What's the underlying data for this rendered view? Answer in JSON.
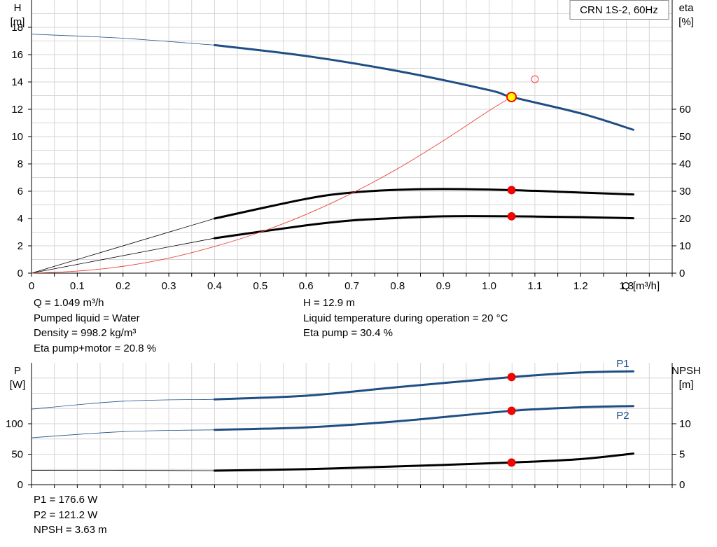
{
  "chart_data": [
    {
      "type": "line",
      "title": "CRN 1S-2, 60Hz",
      "xlabel": "Q [m³/h]",
      "xlim": [
        0,
        1.4
      ],
      "x_ticks": [
        "0",
        "0.1",
        "0.2",
        "0.3",
        "0.4",
        "0.5",
        "0.6",
        "0.7",
        "0.8",
        "0.9",
        "1.0",
        "1.1",
        "1.2",
        "1.3"
      ],
      "ylabel_left": "H",
      "ylabel_left_unit": "[m]",
      "ylim_left": [
        0,
        20
      ],
      "y_ticks_left": [
        "0",
        "2",
        "4",
        "6",
        "8",
        "10",
        "12",
        "14",
        "16",
        "18"
      ],
      "ylabel_right": "eta",
      "ylabel_right_unit": "[%]",
      "ylim_right": [
        0,
        100
      ],
      "y_ticks_right": [
        "0",
        "10",
        "20",
        "30",
        "40",
        "50",
        "60"
      ],
      "grid": true,
      "series": [
        {
          "axis": "left",
          "color": "#1f4e85",
          "x": [
            0,
            0.2,
            0.4,
            0.6,
            0.8,
            1.0,
            1.049,
            1.2,
            1.315
          ],
          "y": [
            17.5,
            17.2,
            16.7,
            15.9,
            14.8,
            13.4,
            12.9,
            11.7,
            10.5
          ]
        },
        {
          "axis": "right",
          "color": "#000000",
          "x": [
            0,
            0.4,
            0.6,
            0.7,
            0.8,
            0.9,
            1.049,
            1.2,
            1.315
          ],
          "y": [
            0,
            20,
            27.2,
            29.5,
            30.5,
            30.8,
            30.4,
            29.5,
            28.8
          ]
        },
        {
          "axis": "right",
          "color": "#000000",
          "x": [
            0,
            0.4,
            0.6,
            0.7,
            0.8,
            0.9,
            1.049,
            1.2,
            1.315
          ],
          "y": [
            0,
            12.8,
            17.5,
            19.3,
            20.2,
            20.8,
            20.8,
            20.5,
            20.1
          ]
        },
        {
          "axis": "left",
          "color": "#e8453c",
          "x": [
            0,
            0.1,
            0.2,
            0.3,
            0.4,
            0.5,
            0.6,
            0.7,
            0.8,
            0.9,
            1.0,
            1.049
          ],
          "y": [
            0,
            0.15,
            0.5,
            1.1,
            1.95,
            3.0,
            4.3,
            5.85,
            7.65,
            9.7,
            11.9,
            12.9
          ]
        }
      ],
      "duty_point": {
        "x": 1.049,
        "y": 12.9
      },
      "operating_markers": [
        {
          "axis": "right",
          "x": 1.049,
          "y": 30.4
        },
        {
          "axis": "right",
          "x": 1.049,
          "y": 20.8
        }
      ],
      "hollow_marker": {
        "x": 1.1,
        "y": 14.2
      }
    },
    {
      "type": "line",
      "xlim": [
        0,
        1.4
      ],
      "ylabel_left": "P",
      "ylabel_left_unit": "[W]",
      "ylim_left": [
        0,
        200
      ],
      "y_ticks_left": [
        "0",
        "50",
        "100"
      ],
      "ylabel_right": "NPSH",
      "ylabel_right_unit": "[m]",
      "ylim_right": [
        0,
        20
      ],
      "y_ticks_right": [
        "0",
        "5",
        "10"
      ],
      "grid": true,
      "series": [
        {
          "name": "P1",
          "axis": "left",
          "color": "#1f4e85",
          "x": [
            0,
            0.2,
            0.4,
            0.6,
            0.8,
            1.049,
            1.2,
            1.315
          ],
          "y": [
            124,
            137,
            140,
            146,
            160,
            176.6,
            184,
            186
          ]
        },
        {
          "name": "P2",
          "axis": "left",
          "color": "#1f4e85",
          "x": [
            0,
            0.2,
            0.4,
            0.6,
            0.8,
            1.049,
            1.2,
            1.315
          ],
          "y": [
            77,
            87,
            90,
            94,
            104,
            121.2,
            127,
            129
          ]
        },
        {
          "axis": "right",
          "color": "#000000",
          "x": [
            0,
            0.2,
            0.4,
            0.6,
            0.8,
            1.049,
            1.2,
            1.315
          ],
          "y": [
            2.35,
            2.35,
            2.3,
            2.55,
            3.0,
            3.63,
            4.2,
            5.1
          ]
        }
      ],
      "operating_markers": [
        {
          "axis": "left",
          "x": 1.049,
          "y": 176.6
        },
        {
          "axis": "left",
          "x": 1.049,
          "y": 121.2
        },
        {
          "axis": "right",
          "x": 1.049,
          "y": 3.63
        }
      ]
    }
  ],
  "info": {
    "q": "Q = 1.049 m³/h",
    "liquid": "Pumped liquid = Water",
    "density": "Density = 998.2 kg/m³",
    "eta_pm": "Eta pump+motor = 20.8 %",
    "h": "H = 12.9 m",
    "temp": "Liquid temperature during operation = 20 °C",
    "eta_pump": "Eta pump = 30.4 %",
    "p1": "P1 = 176.6 W",
    "p2": "P2 = 121.2 W",
    "npsh": "NPSH = 3.63 m"
  }
}
